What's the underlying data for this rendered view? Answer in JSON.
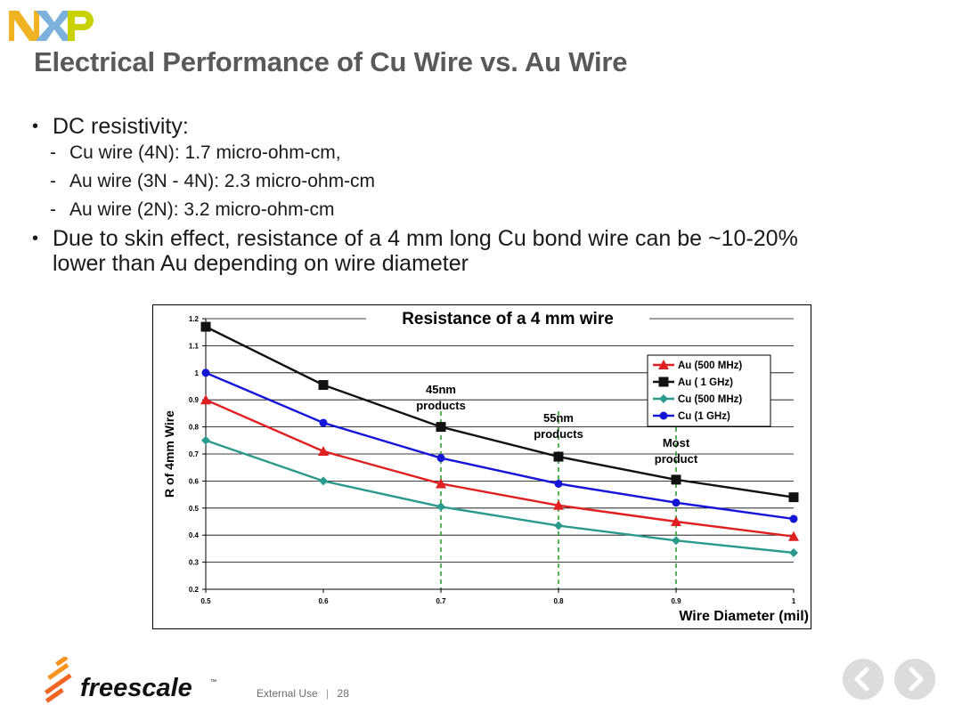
{
  "header": {
    "logo_text": "NXP",
    "title": "Electrical Performance of Cu Wire vs. Au Wire"
  },
  "bullets": {
    "b1": "DC resistivity:",
    "sub1": "Cu wire (4N):  1.7 micro-ohm-cm,",
    "sub2": "Au wire (3N - 4N):  2.3 micro-ohm-cm",
    "sub3": "Au wire (2N):  3.2 micro-ohm-cm",
    "b2": "Due to skin effect, resistance of a 4 mm long Cu bond wire can be ~10-20% lower than Au depending on wire diameter"
  },
  "chart_data": {
    "type": "line",
    "title": "Resistance of a 4 mm wire",
    "xlabel": "Wire Diameter (mil)",
    "ylabel": "R of 4mm Wire",
    "x": [
      0.5,
      0.6,
      0.7,
      0.8,
      0.9,
      1.0
    ],
    "x_tick_labels": [
      "0.5",
      "0.6",
      "0.7",
      "0.8",
      "0.9",
      "1"
    ],
    "xlim": [
      0.5,
      1.0
    ],
    "ylim": [
      0.2,
      1.2
    ],
    "y_ticks": [
      0.2,
      0.3,
      0.4,
      0.5,
      0.6,
      0.7,
      0.8,
      0.9,
      1.0,
      1.1,
      1.2
    ],
    "y_tick_labels": [
      "0.2",
      "0.3",
      "0.4",
      "0.5",
      "0.6",
      "0.7",
      "0.8",
      "0.9",
      "1",
      "1.1",
      "1.2"
    ],
    "grid": true,
    "legend_position": "top-right",
    "series": [
      {
        "name": "Au (500 MHz)",
        "color": "#e02020",
        "marker": "triangle",
        "values": [
          0.9,
          0.71,
          0.59,
          0.51,
          0.45,
          0.395
        ]
      },
      {
        "name": "Au ( 1 GHz)",
        "color": "#111111",
        "marker": "square",
        "values": [
          1.17,
          0.955,
          0.8,
          0.69,
          0.605,
          0.54
        ]
      },
      {
        "name": "Cu (500 MHz)",
        "color": "#2a9a8c",
        "marker": "diamond",
        "values": [
          0.75,
          0.6,
          0.505,
          0.435,
          0.38,
          0.335
        ]
      },
      {
        "name": "Cu (1 GHz)",
        "color": "#1515d8",
        "marker": "circle",
        "values": [
          1.0,
          0.815,
          0.685,
          0.59,
          0.52,
          0.46
        ]
      }
    ],
    "annotations": [
      {
        "x": 0.7,
        "line1": "45nm",
        "line2": "products"
      },
      {
        "x": 0.8,
        "line1": "55nm",
        "line2": "products"
      },
      {
        "x": 0.9,
        "line1": "Most",
        "line2": "product"
      }
    ],
    "annotation_line_color": "#2ca02c"
  },
  "footer": {
    "brand": "freescale",
    "trademark": "™",
    "classification": "External Use",
    "separator": "|",
    "page_number": "28"
  },
  "nav": {
    "prev_glyph": "‹",
    "next_glyph": "›"
  }
}
